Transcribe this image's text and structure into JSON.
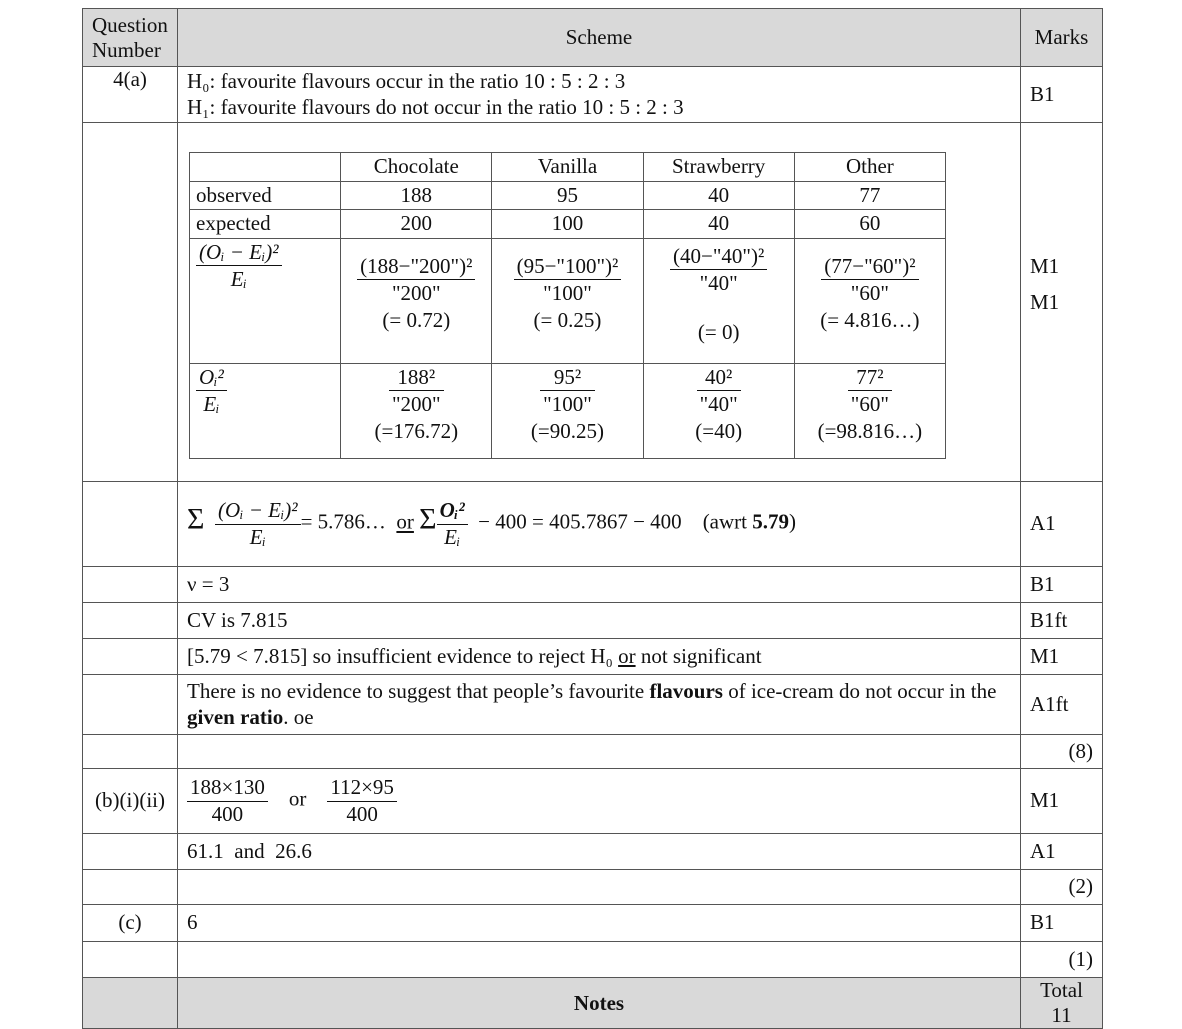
{
  "header": {
    "question_number": "Question Number",
    "scheme": "Scheme",
    "marks": "Marks"
  },
  "q4a": {
    "label": "4(a)",
    "h0": "H₀: favourite flavours occur in the ratio 10 : 5 : 2 : 3",
    "h1": "H₁: favourite flavours do not occur in the ratio 10 : 5 : 2 : 3",
    "mark": "B1",
    "table": {
      "columns": [
        "Chocolate",
        "Vanilla",
        "Strawberry",
        "Other"
      ],
      "observed_label": "observed",
      "observed": [
        "188",
        "95",
        "40",
        "77"
      ],
      "expected_label": "expected",
      "expected": [
        "200",
        "100",
        "40",
        "60"
      ],
      "diff_label_num": "(Oᵢ − Eᵢ)²",
      "diff_label_den": "Eᵢ",
      "diff_num": [
        "(188−\"200\")²",
        "(95−\"100\")²",
        "(40−\"40\")²",
        "(77−\"60\")²"
      ],
      "diff_den": [
        "\"200\"",
        "\"100\"",
        "\"40\"",
        "\"60\""
      ],
      "diff_val": [
        "(= 0.72)",
        "(= 0.25)",
        "(= 0)",
        "(= 4.816…)"
      ],
      "sq_label_num": "Oᵢ²",
      "sq_label_den": "Eᵢ",
      "sq_num": [
        "188²",
        "95²",
        "40²",
        "77²"
      ],
      "sq_den": [
        "\"200\"",
        "\"100\"",
        "\"40\"",
        "\"60\""
      ],
      "sq_val": [
        "(=176.72)",
        "(=90.25)",
        "(=40)",
        "(=98.816…)"
      ]
    },
    "table_marks": [
      "M1",
      "M1"
    ],
    "sum": {
      "sigma": "Σ",
      "num": "(Oᵢ − Eᵢ)²",
      "den": "Eᵢ",
      "result": "= 5.786…",
      "or": "or",
      "num2": "Oᵢ²",
      "den2": "Eᵢ",
      "rest": "− 400 = 405.7867 − 400",
      "awrt": "(awrt ",
      "awrt_val": "5.79",
      "close": ")",
      "mark": "A1"
    },
    "nu": {
      "text": "ν = 3",
      "mark": "B1"
    },
    "cv": {
      "text": "CV is 7.815",
      "mark": "B1ft"
    },
    "compare": {
      "a": "[5.79 < 7.815] so insufficient evidence to reject H₀ ",
      "or": "or",
      "b": " not significant",
      "mark": "M1"
    },
    "conclusion": {
      "a": "There is no evidence to suggest that people’s favourite ",
      "b1": "flavours",
      "c": " of ice-cream do not occur in the ",
      "b2": "given ratio",
      "d": ". oe",
      "mark": "A1ft"
    },
    "subtotal": "(8)"
  },
  "qb": {
    "label": "(b)(i)(ii)",
    "f1n": "188×130",
    "f1d": "400",
    "or": "or",
    "f2n": "112×95",
    "f2d": "400",
    "mark": "M1",
    "answer": "61.1  and  26.6",
    "mark2": "A1",
    "subtotal": "(2)"
  },
  "qc": {
    "label": "(c)",
    "answer": "6",
    "mark": "B1",
    "subtotal": "(1)"
  },
  "footer": {
    "notes": "Notes",
    "total": "Total 11"
  }
}
